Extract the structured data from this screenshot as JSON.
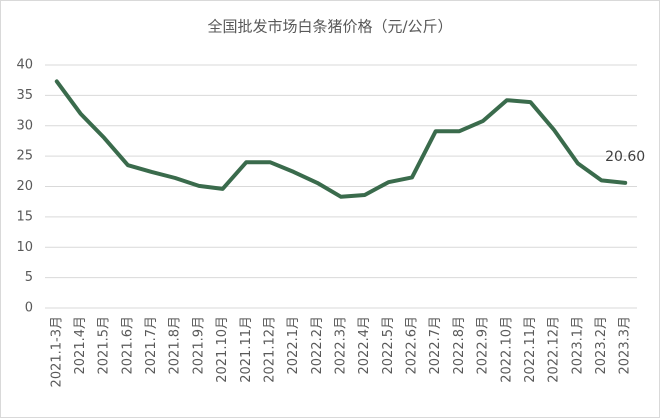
{
  "chart_data": {
    "type": "line",
    "title": "全国批发市场白条猪价格（元/公斤）",
    "categories": [
      "2021.1-3月",
      "2021.4月",
      "2021.5月",
      "2021.6月",
      "2021.7月",
      "2021.8月",
      "2021.9月",
      "2021.10月",
      "2021.11月",
      "2021.12月",
      "2022.1月",
      "2022.2月",
      "2022.3月",
      "2022.4月",
      "2022.5月",
      "2022.6月",
      "2022.7月",
      "2022.8月",
      "2022.9月",
      "2022.10月",
      "2022.11月",
      "2022.12月",
      "2023.1月",
      "2023.2月",
      "2023.3月"
    ],
    "values": [
      37.3,
      32,
      28,
      23.5,
      22.4,
      21.4,
      20.1,
      19.6,
      24,
      24,
      22.4,
      20.6,
      18.3,
      18.6,
      20.7,
      21.5,
      29.1,
      29.1,
      30.8,
      34.2,
      33.9,
      29.3,
      23.8,
      21.0,
      20.6
    ],
    "value_labels": [
      null,
      null,
      null,
      null,
      null,
      null,
      null,
      null,
      null,
      null,
      null,
      null,
      null,
      null,
      null,
      null,
      null,
      null,
      null,
      null,
      null,
      null,
      null,
      null,
      "20.60"
    ],
    "color": "#3a6b4c",
    "ylim": [
      0,
      40
    ],
    "yticks": [
      0,
      5,
      10,
      15,
      20,
      25,
      30,
      35,
      40
    ],
    "grid": true
  }
}
